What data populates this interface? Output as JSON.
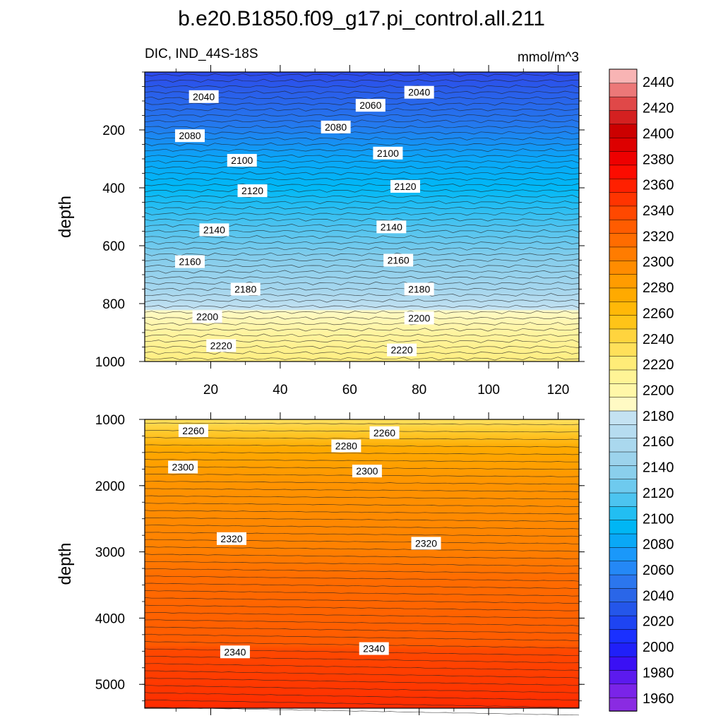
{
  "chart_data": {
    "type": "heatmap",
    "title": "b.e20.B1850.f09_g17.pi_control.all.211",
    "variable_label": "DIC, IND_44S-18S",
    "units": "mmol/m^3",
    "x_ticks": [
      "20",
      "40",
      "60",
      "80",
      "100",
      "120"
    ],
    "x_range": [
      1,
      126
    ],
    "colorbar": {
      "levels": [
        1960,
        1980,
        2000,
        2020,
        2040,
        2060,
        2080,
        2100,
        2120,
        2140,
        2160,
        2180,
        2200,
        2220,
        2240,
        2260,
        2280,
        2300,
        2320,
        2340,
        2360,
        2380,
        2400,
        2420,
        2440
      ],
      "labels": [
        "1960",
        "1980",
        "2000",
        "2020",
        "2040",
        "2060",
        "2080",
        "2100",
        "2120",
        "2140",
        "2160",
        "2180",
        "2200",
        "2220",
        "2240",
        "2260",
        "2280",
        "2300",
        "2320",
        "2340",
        "2360",
        "2380",
        "2400",
        "2420",
        "2440"
      ],
      "min": 1950,
      "max": 2450,
      "colors": [
        "#8a2be2",
        "#7a24e8",
        "#5c1aee",
        "#3a10f4",
        "#2020f8",
        "#1a30ff",
        "#1e44f2",
        "#2456ea",
        "#2a66e8",
        "#2b76ee",
        "#2488f6",
        "#1a98fa",
        "#0aa8f6",
        "#00b6f4",
        "#22bef2",
        "#4cc4f0",
        "#6ecaee",
        "#8acfec",
        "#9cd3ec",
        "#aad8ee",
        "#b6dcf0",
        "#c4e2f2",
        "#fffac4",
        "#fff7a8",
        "#fff496",
        "#ffec78",
        "#ffe05a",
        "#ffd43e",
        "#ffc418",
        "#ffb808",
        "#ffaa00",
        "#ff9c00",
        "#ff8c00",
        "#ff7c00",
        "#ff6c00",
        "#ff5c00",
        "#ff4800",
        "#ff3400",
        "#ff2000",
        "#fc0c00",
        "#ee0000",
        "#dd0000",
        "#cc0000",
        "#d42020",
        "#e04848",
        "#ec7878",
        "#f8b4b4"
      ]
    },
    "panels": [
      {
        "name": "upper",
        "ylabel": "depth",
        "y_range": [
          0,
          1000
        ],
        "y_ticks": [
          "200",
          "400",
          "600",
          "800",
          "1000"
        ],
        "y_tick_values": [
          200,
          400,
          600,
          800,
          1000
        ],
        "contour_labels": [
          {
            "text": "2040",
            "x": 18,
            "depth": 85
          },
          {
            "text": "2040",
            "x": 80,
            "depth": 70
          },
          {
            "text": "2060",
            "x": 66,
            "depth": 115
          },
          {
            "text": "2080",
            "x": 14,
            "depth": 220
          },
          {
            "text": "2080",
            "x": 56,
            "depth": 190
          },
          {
            "text": "2100",
            "x": 29,
            "depth": 305
          },
          {
            "text": "2100",
            "x": 71,
            "depth": 280
          },
          {
            "text": "2120",
            "x": 32,
            "depth": 410
          },
          {
            "text": "2120",
            "x": 76,
            "depth": 395
          },
          {
            "text": "2140",
            "x": 21,
            "depth": 545
          },
          {
            "text": "2140",
            "x": 72,
            "depth": 535
          },
          {
            "text": "2160",
            "x": 14,
            "depth": 655
          },
          {
            "text": "2160",
            "x": 74,
            "depth": 650
          },
          {
            "text": "2180",
            "x": 30,
            "depth": 750
          },
          {
            "text": "2180",
            "x": 80,
            "depth": 750
          },
          {
            "text": "2200",
            "x": 19,
            "depth": 845
          },
          {
            "text": "2200",
            "x": 80,
            "depth": 850
          },
          {
            "text": "2220",
            "x": 23,
            "depth": 945
          },
          {
            "text": "2220",
            "x": 75,
            "depth": 960
          }
        ]
      },
      {
        "name": "lower",
        "ylabel": "depth",
        "y_range": [
          1000,
          5360
        ],
        "y_ticks": [
          "1000",
          "2000",
          "3000",
          "4000",
          "5000"
        ],
        "y_tick_values": [
          1000,
          2000,
          3000,
          4000,
          5000
        ],
        "contour_labels": [
          {
            "text": "2260",
            "x": 15,
            "depth": 1170
          },
          {
            "text": "2260",
            "x": 70,
            "depth": 1200
          },
          {
            "text": "2280",
            "x": 59,
            "depth": 1400
          },
          {
            "text": "2300",
            "x": 12,
            "depth": 1720
          },
          {
            "text": "2300",
            "x": 65,
            "depth": 1780
          },
          {
            "text": "2320",
            "x": 26,
            "depth": 2800
          },
          {
            "text": "2320",
            "x": 82,
            "depth": 2870
          },
          {
            "text": "2340",
            "x": 27,
            "depth": 4510
          },
          {
            "text": "2340",
            "x": 67,
            "depth": 4460
          }
        ]
      }
    ]
  }
}
